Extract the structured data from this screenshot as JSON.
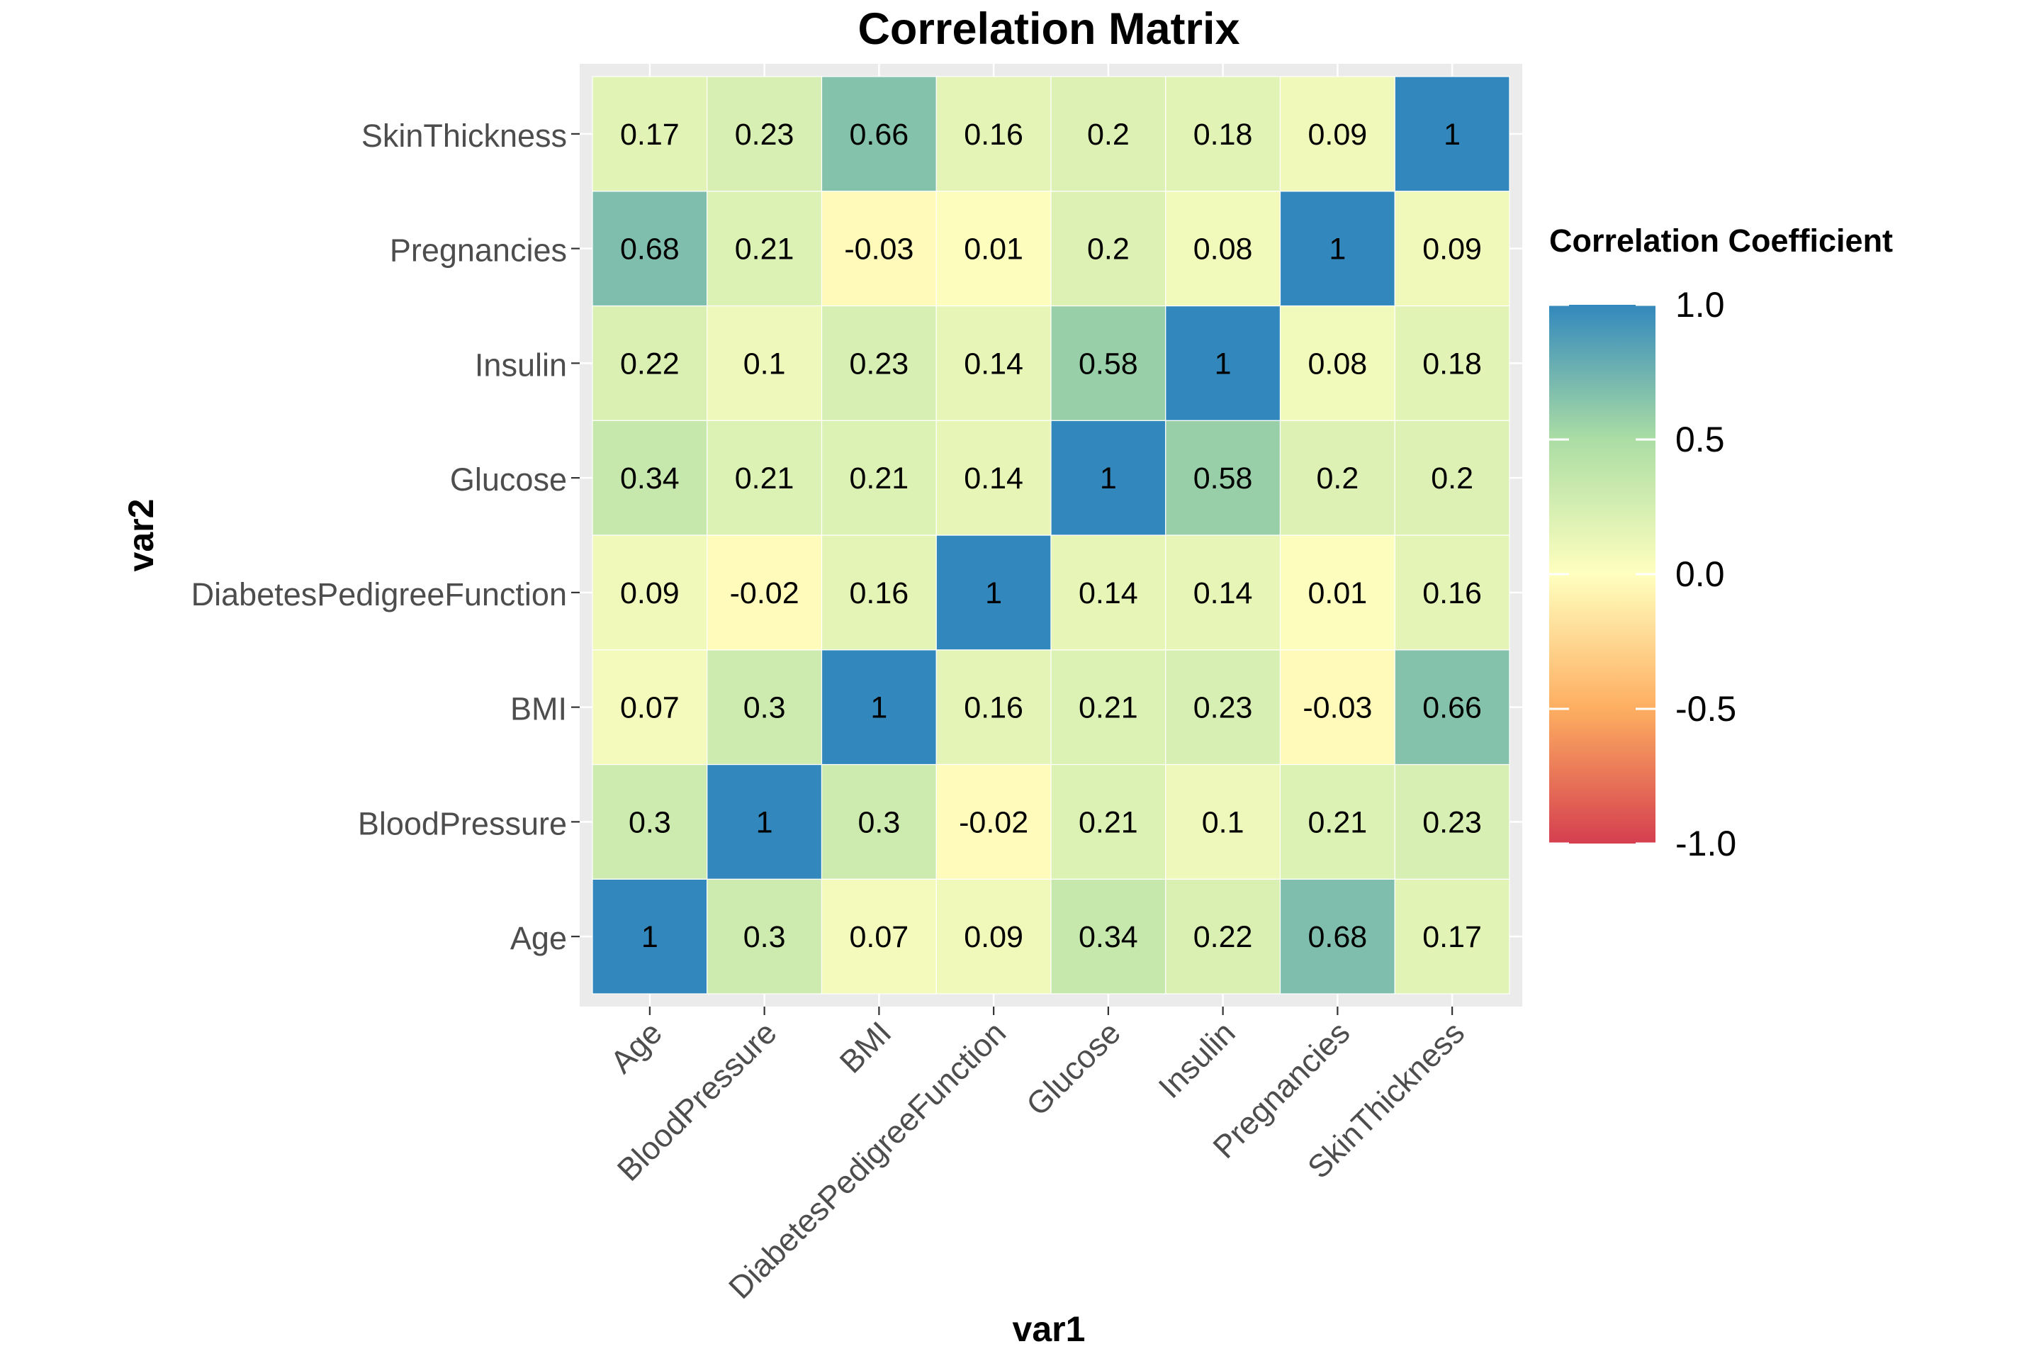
{
  "chart_data": {
    "type": "heatmap",
    "title": "Correlation Matrix",
    "xlabel": "var1",
    "ylabel": "var2",
    "x_categories": [
      "Age",
      "BloodPressure",
      "BMI",
      "DiabetesPedigreeFunction",
      "Glucose",
      "Insulin",
      "Pregnancies",
      "SkinThickness"
    ],
    "y_categories": [
      "Age",
      "BloodPressure",
      "BMI",
      "DiabetesPedigreeFunction",
      "Glucose",
      "Insulin",
      "Pregnancies",
      "SkinThickness"
    ],
    "values": [
      [
        1,
        0.3,
        0.07,
        0.09,
        0.34,
        0.22,
        0.68,
        0.17
      ],
      [
        0.3,
        1,
        0.3,
        -0.02,
        0.21,
        0.1,
        0.21,
        0.23
      ],
      [
        0.07,
        0.3,
        1,
        0.16,
        0.21,
        0.23,
        -0.03,
        0.66
      ],
      [
        0.09,
        -0.02,
        0.16,
        1,
        0.14,
        0.14,
        0.01,
        0.16
      ],
      [
        0.34,
        0.21,
        0.21,
        0.14,
        1,
        0.58,
        0.2,
        0.2
      ],
      [
        0.22,
        0.1,
        0.23,
        0.14,
        0.58,
        1,
        0.08,
        0.18
      ],
      [
        0.68,
        0.21,
        -0.03,
        0.01,
        0.2,
        0.08,
        1,
        0.09
      ],
      [
        0.17,
        0.23,
        0.66,
        0.16,
        0.2,
        0.18,
        0.09,
        1
      ]
    ],
    "value_range": [
      -1,
      1
    ],
    "legend": {
      "title": "Correlation Coefficient",
      "ticks": [
        1.0,
        0.5,
        0.0,
        -0.5,
        -1.0
      ],
      "tick_labels": [
        "1.0",
        "0.5",
        "0.0",
        "-0.5",
        "-1.0"
      ],
      "placement": "right"
    },
    "colorscale": [
      {
        "value": -1.0,
        "color": "#d53e4f"
      },
      {
        "value": -0.5,
        "color": "#fdae61"
      },
      {
        "value": 0.0,
        "color": "#ffffbf"
      },
      {
        "value": 0.5,
        "color": "#abdda4"
      },
      {
        "value": 1.0,
        "color": "#3288bd"
      }
    ],
    "panel_background": "#ebebeb",
    "grid": true
  }
}
